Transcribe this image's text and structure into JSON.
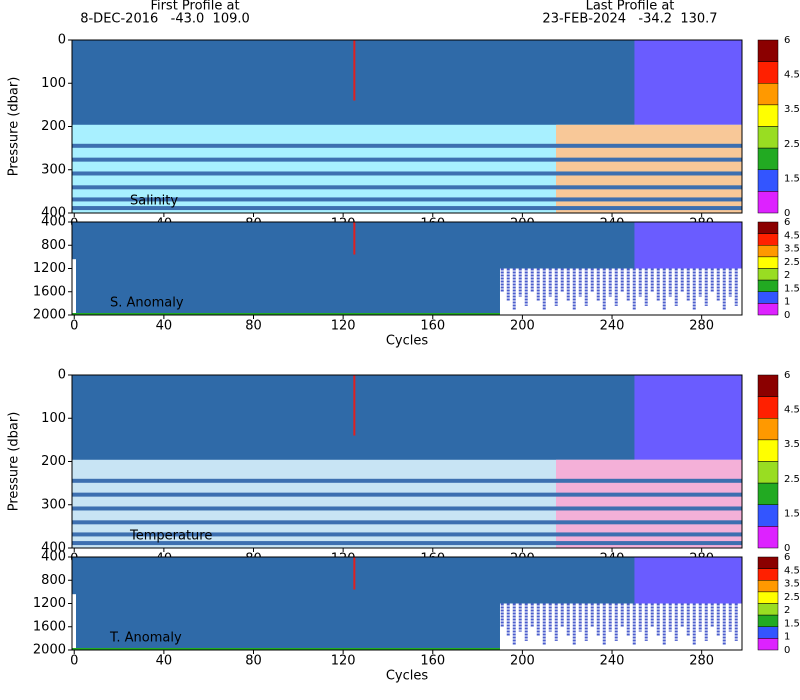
{
  "header": {
    "first_label": "First Profile at",
    "first_value": "8-DEC-2016   -43.0  109.0",
    "last_label": "Last Profile at",
    "last_value": "23-FEB-2024   -34.2  130.7"
  },
  "chart_data": [
    {
      "type": "heatmap",
      "label": "Salinity",
      "y_label": "Pressure (dbar)",
      "xlim": [
        -1,
        298
      ],
      "xticks": [
        0,
        40,
        80,
        120,
        160,
        200,
        240,
        280
      ],
      "ylim": [
        0,
        400
      ],
      "yticks": [
        0,
        100,
        200,
        300,
        400
      ],
      "colorbar_ticks": [
        6,
        4.5,
        3.5,
        2.5,
        1.5,
        0
      ],
      "colors": [
        "#8b0000",
        "#ff2000",
        "#ff9900",
        "#ffff00",
        "#99dd22",
        "#22aa22",
        "#3355ff",
        "#dd22ff"
      ]
    },
    {
      "type": "heatmap",
      "label": "S. Anomaly",
      "x_label": "Cycles",
      "xlim": [
        -1,
        298
      ],
      "xticks": [
        0,
        40,
        80,
        120,
        160,
        200,
        240,
        280
      ],
      "ylim": [
        400,
        2000
      ],
      "yticks": [
        400,
        800,
        1200,
        1600,
        2000
      ],
      "colorbar_ticks": [
        6,
        4.5,
        3.5,
        2.5,
        2,
        1.5,
        1,
        0
      ],
      "colors": [
        "#8b0000",
        "#ff2000",
        "#ff9900",
        "#ffff00",
        "#99dd22",
        "#22aa22",
        "#3355ff",
        "#dd22ff"
      ]
    },
    {
      "type": "heatmap",
      "label": "Temperature",
      "y_label": "Pressure (dbar)",
      "xlim": [
        -1,
        298
      ],
      "xticks": [
        0,
        40,
        80,
        120,
        160,
        200,
        240,
        280
      ],
      "ylim": [
        0,
        400
      ],
      "yticks": [
        0,
        100,
        200,
        300,
        400
      ],
      "colorbar_ticks": [
        6,
        4.5,
        3.5,
        2.5,
        1.5,
        0
      ],
      "colors": [
        "#8b0000",
        "#ff2000",
        "#ff9900",
        "#ffff00",
        "#99dd22",
        "#22aa22",
        "#3355ff",
        "#dd22ff"
      ]
    },
    {
      "type": "heatmap",
      "label": "T. Anomaly",
      "x_label": "Cycles",
      "xlim": [
        -1,
        298
      ],
      "xticks": [
        0,
        40,
        80,
        120,
        160,
        200,
        240,
        280
      ],
      "ylim": [
        400,
        2000
      ],
      "yticks": [
        400,
        800,
        1200,
        1600,
        2000
      ],
      "colorbar_ticks": [
        6,
        4.5,
        3.5,
        2.5,
        2,
        1.5,
        1,
        0
      ],
      "colors": [
        "#8b0000",
        "#ff2000",
        "#ff9900",
        "#ffff00",
        "#99dd22",
        "#22aa22",
        "#3355ff",
        "#dd22ff"
      ]
    }
  ]
}
